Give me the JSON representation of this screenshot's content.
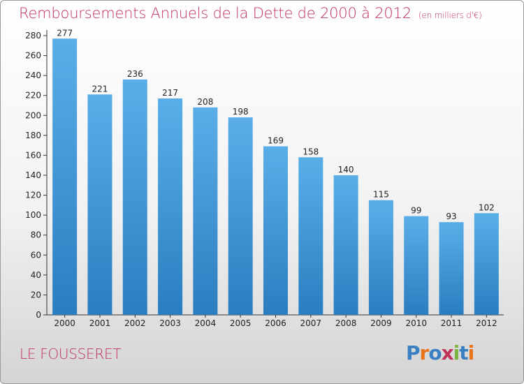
{
  "title": "Remboursements Annuels de la Dette de 2000 à 2012",
  "subtitle": "(en milliers d'€)",
  "commune": "LE FOUSSERET",
  "logo": {
    "letters": [
      "P",
      "r",
      "o",
      "x",
      "i",
      "t",
      "i"
    ],
    "colors": [
      "#3a7fc2",
      "#e8731b",
      "#3a7fc2",
      "#c0335b",
      "#7cb342",
      "#3a7fc2",
      "#e8731b"
    ]
  },
  "chart_data": {
    "type": "bar",
    "title": "Remboursements Annuels de la Dette de 2000 à 2012",
    "xlabel": "",
    "ylabel": "",
    "categories": [
      "2000",
      "2001",
      "2002",
      "2003",
      "2004",
      "2005",
      "2006",
      "2007",
      "2008",
      "2009",
      "2010",
      "2011",
      "2012"
    ],
    "values": [
      277,
      221,
      236,
      217,
      208,
      198,
      169,
      158,
      140,
      115,
      99,
      93,
      102
    ],
    "ylim": [
      0,
      280
    ],
    "yticks": [
      0,
      20,
      40,
      60,
      80,
      100,
      120,
      140,
      160,
      180,
      200,
      220,
      240,
      260,
      280
    ],
    "bar_color": "#4a98dc",
    "grid": false
  }
}
